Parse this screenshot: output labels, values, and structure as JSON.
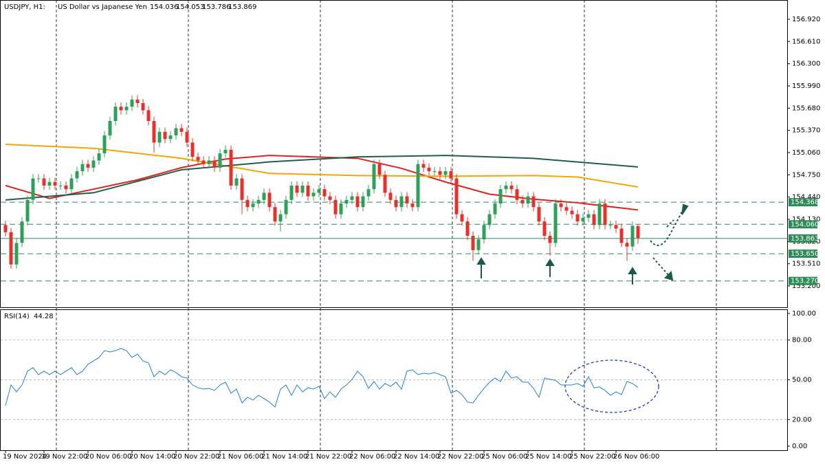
{
  "chart_data": [
    {
      "type": "candlestick",
      "title": "USDJPY, H1:",
      "subtitle": "US Dollar vs Japanese Yen",
      "up_color": "#2fa05a",
      "down_color": "#e8302b",
      "ylim": [
        152.903,
        157.188
      ],
      "yticks": [
        {
          "value": 156.92,
          "label": "156.920"
        },
        {
          "value": 156.61,
          "label": "156.610"
        },
        {
          "value": 156.3,
          "label": "156.300"
        },
        {
          "value": 155.99,
          "label": "155.990"
        },
        {
          "value": 155.68,
          "label": "155.680"
        },
        {
          "value": 155.37,
          "label": "155.370"
        },
        {
          "value": 155.06,
          "label": "155.060"
        },
        {
          "value": 154.75,
          "label": "154.750"
        },
        {
          "value": 154.44,
          "label": "154.440"
        },
        {
          "value": 154.13,
          "label": "154.130"
        },
        {
          "value": 153.82,
          "label": "153.820"
        },
        {
          "value": 153.51,
          "label": "153.510"
        },
        {
          "value": 153.2,
          "label": "153.200"
        }
      ],
      "xticks": [
        {
          "value": 0,
          "label": "19 Nov 2024"
        },
        {
          "value": 7,
          "label": "19 Nov 22:00"
        },
        {
          "value": 15,
          "label": "20 Nov 06:00"
        },
        {
          "value": 23,
          "label": "20 Nov 14:00"
        },
        {
          "value": 31,
          "label": "20 Nov 22:00"
        },
        {
          "value": 39,
          "label": "21 Nov 06:00"
        },
        {
          "value": 47,
          "label": "21 Nov 14:00"
        },
        {
          "value": 55,
          "label": "21 Nov 22:00"
        },
        {
          "value": 63,
          "label": "22 Nov 06:00"
        },
        {
          "value": 71,
          "label": "22 Nov 14:00"
        },
        {
          "value": 79,
          "label": "22 Nov 22:00"
        },
        {
          "value": 87,
          "label": "25 Nov 06:00"
        },
        {
          "value": 95,
          "label": "25 Nov 14:00"
        },
        {
          "value": 103,
          "label": "25 Nov 22:00"
        },
        {
          "value": 111,
          "label": "26 Nov 06:00"
        }
      ],
      "levels": [
        {
          "value": 154.368,
          "label": "154.368",
          "style": "dashed"
        },
        {
          "value": 154.06,
          "label": "154.060",
          "style": "dashed"
        },
        {
          "value": 153.863,
          "label": "153.863",
          "style": "solid"
        },
        {
          "value": 153.65,
          "label": "153.650",
          "style": "dashed"
        },
        {
          "value": 153.27,
          "label": "153.270",
          "style": "dashed"
        }
      ],
      "level_color": "#2e8b57",
      "series": [
        {
          "color": "#e0201c",
          "x": [
            0,
            8,
            16,
            24,
            32,
            40,
            48,
            56,
            64,
            72,
            80,
            88,
            96,
            104,
            115
          ],
          "values": [
            154.6,
            154.42,
            154.55,
            154.68,
            154.85,
            154.97,
            155.02,
            155.0,
            154.98,
            154.84,
            154.65,
            154.48,
            154.41,
            154.36,
            154.26
          ]
        },
        {
          "color": "#f5a500",
          "x": [
            0,
            16,
            32,
            48,
            64,
            80,
            96,
            104,
            115
          ],
          "values": [
            155.175,
            155.12,
            154.98,
            154.77,
            154.74,
            154.73,
            154.74,
            154.72,
            154.58
          ]
        },
        {
          "color": "#1f5f4a",
          "x": [
            0,
            16,
            32,
            48,
            64,
            80,
            96,
            115
          ],
          "values": [
            154.4,
            154.5,
            154.82,
            154.93,
            155.0,
            155.02,
            154.98,
            154.86
          ]
        }
      ],
      "candles": [
        [
          154.05,
          154.11,
          153.89,
          153.95
        ],
        [
          153.95,
          154.01,
          153.44,
          153.5
        ],
        [
          153.5,
          153.86,
          153.44,
          153.8
        ],
        [
          153.8,
          154.16,
          153.74,
          154.1
        ],
        [
          154.1,
          154.46,
          154.04,
          154.4
        ],
        [
          154.4,
          154.76,
          154.34,
          154.7
        ],
        [
          154.7,
          154.76,
          154.64,
          154.7
        ],
        [
          154.7,
          154.76,
          154.54,
          154.6
        ],
        [
          154.6,
          154.71,
          154.54,
          154.65
        ],
        [
          154.65,
          154.71,
          154.54,
          154.6
        ],
        [
          154.6,
          154.66,
          154.54,
          154.6
        ],
        [
          154.6,
          154.66,
          154.49,
          154.55
        ],
        [
          154.55,
          154.76,
          154.49,
          154.7
        ],
        [
          154.7,
          154.86,
          154.64,
          154.8
        ],
        [
          154.8,
          154.96,
          154.74,
          154.9
        ],
        [
          154.9,
          154.96,
          154.79,
          154.85
        ],
        [
          154.85,
          155.01,
          154.79,
          154.95
        ],
        [
          154.95,
          155.11,
          154.89,
          155.05
        ],
        [
          155.05,
          155.36,
          154.99,
          155.3
        ],
        [
          155.3,
          155.56,
          155.24,
          155.5
        ],
        [
          155.5,
          155.76,
          155.44,
          155.7
        ],
        [
          155.7,
          155.76,
          155.59,
          155.65
        ],
        [
          155.65,
          155.76,
          155.59,
          155.7
        ],
        [
          155.7,
          155.86,
          155.64,
          155.8
        ],
        [
          155.8,
          155.86,
          155.69,
          155.75
        ],
        [
          155.75,
          155.81,
          155.59,
          155.65
        ],
        [
          155.65,
          155.71,
          155.44,
          155.5
        ],
        [
          155.5,
          155.56,
          155.06,
          155.2
        ],
        [
          155.2,
          155.41,
          155.14,
          155.35
        ],
        [
          155.35,
          155.41,
          155.19,
          155.25
        ],
        [
          155.25,
          155.36,
          155.19,
          155.3
        ],
        [
          155.3,
          155.46,
          155.24,
          155.4
        ],
        [
          155.4,
          155.46,
          155.29,
          155.35
        ],
        [
          155.35,
          155.41,
          155.14,
          155.2
        ],
        [
          155.2,
          155.26,
          154.94,
          155.0
        ],
        [
          155.0,
          155.06,
          154.89,
          154.95
        ],
        [
          154.95,
          155.01,
          154.84,
          154.9
        ],
        [
          154.9,
          155.01,
          154.84,
          154.95
        ],
        [
          154.95,
          155.01,
          154.79,
          154.85
        ],
        [
          154.85,
          155.11,
          154.79,
          155.05
        ],
        [
          155.05,
          155.16,
          154.99,
          155.1
        ],
        [
          155.1,
          155.16,
          154.54,
          154.6
        ],
        [
          154.6,
          154.76,
          154.54,
          154.7
        ],
        [
          154.7,
          154.76,
          154.2,
          154.4
        ],
        [
          154.4,
          154.46,
          154.24,
          154.3
        ],
        [
          154.3,
          154.41,
          154.24,
          154.35
        ],
        [
          154.35,
          154.46,
          154.29,
          154.4
        ],
        [
          154.4,
          154.56,
          154.34,
          154.5
        ],
        [
          154.5,
          154.56,
          154.24,
          154.3
        ],
        [
          154.3,
          154.36,
          154.04,
          154.1
        ],
        [
          154.1,
          154.26,
          153.96,
          154.2
        ],
        [
          154.2,
          154.46,
          154.14,
          154.4
        ],
        [
          154.4,
          154.66,
          154.34,
          154.6
        ],
        [
          154.6,
          154.66,
          154.44,
          154.5
        ],
        [
          154.5,
          154.66,
          154.44,
          154.6
        ],
        [
          154.6,
          154.66,
          154.39,
          154.45
        ],
        [
          154.45,
          154.56,
          154.39,
          154.5
        ],
        [
          154.5,
          154.61,
          154.44,
          154.55
        ],
        [
          154.55,
          154.61,
          154.39,
          154.45
        ],
        [
          154.45,
          154.51,
          154.34,
          154.4
        ],
        [
          154.4,
          154.46,
          154.14,
          154.2
        ],
        [
          154.2,
          154.41,
          154.14,
          154.35
        ],
        [
          154.35,
          154.46,
          154.29,
          154.4
        ],
        [
          154.4,
          154.51,
          154.34,
          154.45
        ],
        [
          154.45,
          154.51,
          154.24,
          154.3
        ],
        [
          154.3,
          154.51,
          154.24,
          154.45
        ],
        [
          154.45,
          154.61,
          154.39,
          154.55
        ],
        [
          154.55,
          154.96,
          154.49,
          154.9
        ],
        [
          154.9,
          154.96,
          154.69,
          154.75
        ],
        [
          154.75,
          154.81,
          154.44,
          154.5
        ],
        [
          154.5,
          154.56,
          154.34,
          154.4
        ],
        [
          154.4,
          154.46,
          154.24,
          154.3
        ],
        [
          154.3,
          154.51,
          154.24,
          154.45
        ],
        [
          154.45,
          154.51,
          154.29,
          154.35
        ],
        [
          154.35,
          154.41,
          154.24,
          154.3
        ],
        [
          154.3,
          154.96,
          154.24,
          154.9
        ],
        [
          154.9,
          154.96,
          154.79,
          154.85
        ],
        [
          154.85,
          154.91,
          154.74,
          154.8
        ],
        [
          154.8,
          154.86,
          154.74,
          154.8
        ],
        [
          154.8,
          154.86,
          154.69,
          154.75
        ],
        [
          154.75,
          154.86,
          154.69,
          154.8
        ],
        [
          154.8,
          154.86,
          154.64,
          154.7
        ],
        [
          154.7,
          154.76,
          154.14,
          154.2
        ],
        [
          154.2,
          154.26,
          154.04,
          154.1
        ],
        [
          154.1,
          154.16,
          153.84,
          153.9
        ],
        [
          153.9,
          153.96,
          153.55,
          153.7
        ],
        [
          153.7,
          153.91,
          153.64,
          153.85
        ],
        [
          153.85,
          154.11,
          153.79,
          154.05
        ],
        [
          154.05,
          154.26,
          153.99,
          154.2
        ],
        [
          154.2,
          154.41,
          154.14,
          154.35
        ],
        [
          154.35,
          154.61,
          154.29,
          154.55
        ],
        [
          154.55,
          154.66,
          154.49,
          154.6
        ],
        [
          154.6,
          154.66,
          154.49,
          154.55
        ],
        [
          154.55,
          154.61,
          154.34,
          154.4
        ],
        [
          154.4,
          154.46,
          154.29,
          154.35
        ],
        [
          154.35,
          154.51,
          154.29,
          154.45
        ],
        [
          154.45,
          154.51,
          154.24,
          154.3
        ],
        [
          154.3,
          154.36,
          154.04,
          154.1
        ],
        [
          154.1,
          154.16,
          153.84,
          153.9
        ],
        [
          153.9,
          153.96,
          153.62,
          153.8
        ],
        [
          153.8,
          154.41,
          153.74,
          154.35
        ],
        [
          154.35,
          154.41,
          154.24,
          154.3
        ],
        [
          154.3,
          154.36,
          154.19,
          154.25
        ],
        [
          154.25,
          154.31,
          154.14,
          154.2
        ],
        [
          154.2,
          154.26,
          154.04,
          154.1
        ],
        [
          154.1,
          154.21,
          154.04,
          154.15
        ],
        [
          154.15,
          154.26,
          154.09,
          154.2
        ],
        [
          154.2,
          154.26,
          153.99,
          154.05
        ],
        [
          154.05,
          154.41,
          153.99,
          154.35
        ],
        [
          154.35,
          154.41,
          153.99,
          154.05
        ],
        [
          154.05,
          154.11,
          153.99,
          154.05
        ],
        [
          154.05,
          154.11,
          153.94,
          154.0
        ],
        [
          154.0,
          154.06,
          153.74,
          153.8
        ],
        [
          153.8,
          153.86,
          153.55,
          153.75
        ],
        [
          153.75,
          154.1,
          153.69,
          154.04
        ],
        [
          154.036,
          154.053,
          153.786,
          153.869
        ]
      ]
    },
    {
      "type": "line",
      "title": "RSI(14)",
      "color": "#1e7fd6",
      "ylim": [
        -3.1,
        103.1
      ],
      "yticks": [
        {
          "value": 100,
          "label": "100.00"
        },
        {
          "value": 80,
          "label": "80.00"
        },
        {
          "value": 50,
          "label": "50.00"
        },
        {
          "value": 20,
          "label": "20.00"
        },
        {
          "value": 0,
          "label": "0.00"
        }
      ],
      "values": [
        30.6,
        46.1,
        40.9,
        46.1,
        56.5,
        59.1,
        53.9,
        56.5,
        53.9,
        56.5,
        53.9,
        56.5,
        59.1,
        53.9,
        56.5,
        61.7,
        64.2,
        66.8,
        72.0,
        71.0,
        72.0,
        73.6,
        72.0,
        66.8,
        69.4,
        64.2,
        62.7,
        52.3,
        56.5,
        53.9,
        57.5,
        55.4,
        52.3,
        51.3,
        46.1,
        44.0,
        43.0,
        43.5,
        42.0,
        46.1,
        48.2,
        39.9,
        43.0,
        32.6,
        36.8,
        34.7,
        38.3,
        35.8,
        33.2,
        29.5,
        43.0,
        46.1,
        38.3,
        46.1,
        40.9,
        44.0,
        43.0,
        45.1,
        35.8,
        40.9,
        36.8,
        43.0,
        46.1,
        50.3,
        56.5,
        52.3,
        43.5,
        48.7,
        43.0,
        47.2,
        45.1,
        48.2,
        43.0,
        56.5,
        57.5,
        53.9,
        54.9,
        54.4,
        55.4,
        53.9,
        52.3,
        39.9,
        42.0,
        38.9,
        33.2,
        32.6,
        38.3,
        43.5,
        48.2,
        51.3,
        48.7,
        56.5,
        51.3,
        52.3,
        48.2,
        48.2,
        43.5,
        36.8,
        51.3,
        50.3,
        49.7,
        46.1,
        46.1,
        46.1,
        47.2,
        45.1,
        52.3,
        44.0,
        44.6,
        42.0,
        38.3,
        40.9,
        38.9,
        48.7,
        47.2,
        44.28
      ]
    }
  ]
}
